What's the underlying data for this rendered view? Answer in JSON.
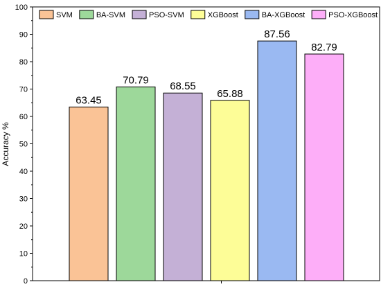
{
  "chart_data": {
    "type": "bar",
    "categories": [
      "SVM",
      "BA-SVM",
      "PSO-SVM",
      "XGBoost",
      "BA-XGBoost",
      "PSO-XGBoost"
    ],
    "values": [
      63.45,
      70.79,
      68.55,
      65.88,
      87.56,
      82.79
    ],
    "value_labels": [
      "63.45",
      "70.79",
      "68.55",
      "65.88",
      "87.56",
      "82.79"
    ],
    "colors": [
      "#fac396",
      "#9dd89a",
      "#c4b0d6",
      "#fdfd97",
      "#9ab9f2",
      "#fdaef8"
    ],
    "ylabel": "Accuracy %",
    "ylim": [
      0,
      100
    ],
    "yticks": [
      0,
      10,
      20,
      30,
      40,
      50,
      60,
      70,
      80,
      90,
      100
    ],
    "legend_position": "top",
    "grid": false
  }
}
